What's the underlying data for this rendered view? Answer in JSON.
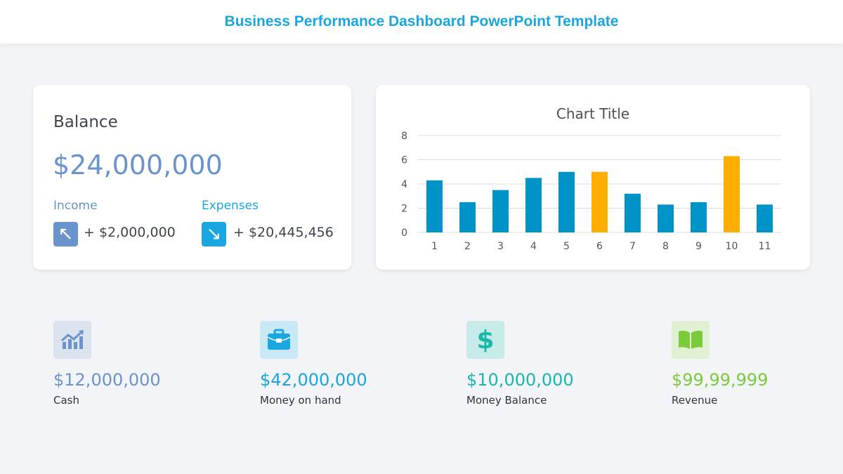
{
  "header": {
    "title": "Business Performance Dashboard PowerPoint Template"
  },
  "balance": {
    "title": "Balance",
    "amount": "$24,000,000",
    "income": {
      "label": "Income",
      "value": "+ $2,000,000",
      "icon": "arrow-up-left-icon",
      "color": "#6b93cc"
    },
    "expenses": {
      "label": "Expenses",
      "value": "+ $20,445,456",
      "icon": "arrow-down-right-icon",
      "color": "#1aa6e0"
    }
  },
  "chart_data": {
    "type": "bar",
    "title": "Chart Title",
    "categories": [
      "1",
      "2",
      "3",
      "4",
      "5",
      "6",
      "7",
      "8",
      "9",
      "10",
      "11"
    ],
    "values": [
      4.3,
      2.5,
      3.5,
      4.5,
      5,
      5,
      3.2,
      2.3,
      2.5,
      6.3,
      2.3
    ],
    "highlight_colors": [
      "#0093c8",
      "#0093c8",
      "#0093c8",
      "#0093c8",
      "#0093c8",
      "#ffae00",
      "#0093c8",
      "#0093c8",
      "#0093c8",
      "#ffae00",
      "#0093c8"
    ],
    "ylim": [
      0,
      8
    ],
    "yticks": [
      0,
      2,
      4,
      6,
      8
    ],
    "grid": true
  },
  "kpis": [
    {
      "amount": "$12,000,000",
      "label": "Cash",
      "icon": "chart-growth-icon",
      "color": "#6b93cc",
      "bg": "#dbe3ef"
    },
    {
      "amount": "$42,000,000",
      "label": "Money on hand",
      "icon": "briefcase-icon",
      "color": "#1aa6e0",
      "bg": "#c9e9f7"
    },
    {
      "amount": "$10,000,000",
      "label": "Money Balance",
      "icon": "dollar-icon",
      "color": "#19b8a8",
      "bg": "#c6ebe8"
    },
    {
      "amount": "$99,99,999",
      "label": "Revenue",
      "icon": "book-icon",
      "color": "#7ccb3c",
      "bg": "#dff1d2"
    }
  ]
}
